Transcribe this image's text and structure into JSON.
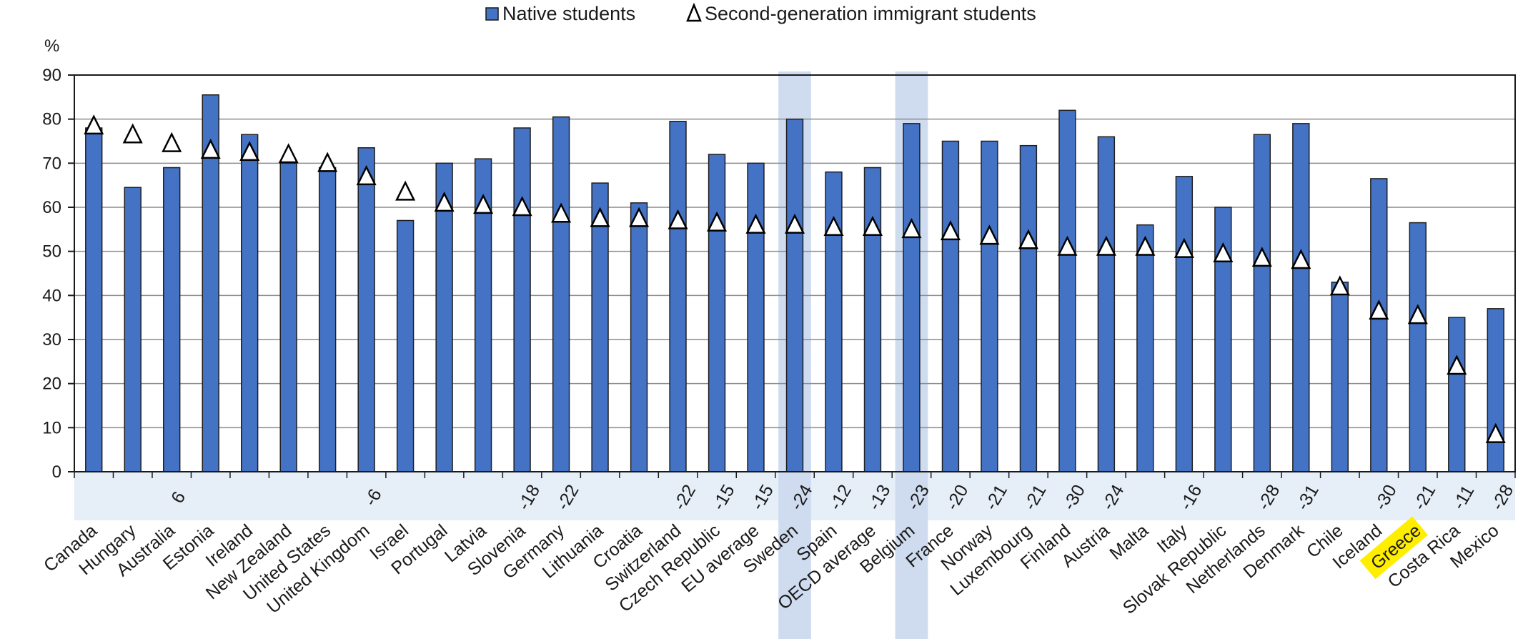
{
  "chart_data": {
    "type": "bar",
    "ylabel": "%",
    "ylim": [
      0,
      90
    ],
    "yticks": [
      0,
      10,
      20,
      30,
      40,
      50,
      60,
      70,
      80,
      90
    ],
    "grid": "horizontal",
    "legend_position": "top-center",
    "categories": [
      "Canada",
      "Hungary",
      "Australia",
      "Estonia",
      "Ireland",
      "New Zealand",
      "United States",
      "United Kingdom",
      "Israel",
      "Portugal",
      "Latvia",
      "Slovenia",
      "Germany",
      "Lithuania",
      "Croatia",
      "Switzerland",
      "Czech Republic",
      "EU average",
      "Sweden",
      "Spain",
      "OECD average",
      "Belgium",
      "France",
      "Norway",
      "Luxembourg",
      "Finland",
      "Austria",
      "Malta",
      "Italy",
      "Slovak Republic",
      "Netherlands",
      "Denmark",
      "Chile",
      "Iceland",
      "Greece",
      "Costa Rica",
      "Mexico"
    ],
    "series": [
      {
        "name": "Native students",
        "marker": "bar",
        "color": "#4472C4",
        "values": [
          78,
          64.5,
          69,
          85.5,
          76.5,
          70,
          69,
          73.5,
          57,
          70,
          71,
          78,
          80.5,
          65.5,
          61,
          79.5,
          72,
          70,
          80,
          68,
          69,
          79,
          75,
          75,
          74,
          82,
          76,
          56,
          67,
          60,
          76.5,
          79,
          43,
          66.5,
          56.5,
          35,
          37
        ]
      },
      {
        "name": "Second-generation immigrant students",
        "marker": "triangle",
        "color": "#ffffff",
        "values": [
          78.5,
          76.5,
          74.5,
          73,
          72.5,
          72,
          70,
          67,
          63.5,
          61,
          60.5,
          60,
          58.5,
          57.5,
          57.5,
          57,
          56.5,
          56,
          56,
          55.5,
          55.5,
          55,
          54.5,
          53.5,
          52.5,
          51,
          51,
          51,
          50.5,
          49.5,
          48.5,
          48,
          42,
          36.5,
          35.5,
          24,
          8.5
        ]
      }
    ],
    "differences": [
      "",
      "",
      "6",
      "",
      "",
      "",
      "",
      "-6",
      "",
      "",
      "",
      "-18",
      "-22",
      "",
      "",
      "-22",
      "-15",
      "-15",
      "-24",
      "-12",
      "-13",
      "-23",
      "-20",
      "-21",
      "-21",
      "-30",
      "-24",
      "",
      "-16",
      "",
      "-28",
      "-31",
      "",
      "-30",
      "-21",
      "-11",
      "-28"
    ],
    "highlighted_columns": [
      "Sweden",
      "Belgium"
    ],
    "highlighted_label": "Greece",
    "colors": {
      "bar_fill": "#4472C4",
      "bar_stroke": "#1f1f1f",
      "column_highlight": "#cfdcf0",
      "diff_band": "#e6eef8",
      "label_highlight": "#ffee00"
    }
  }
}
